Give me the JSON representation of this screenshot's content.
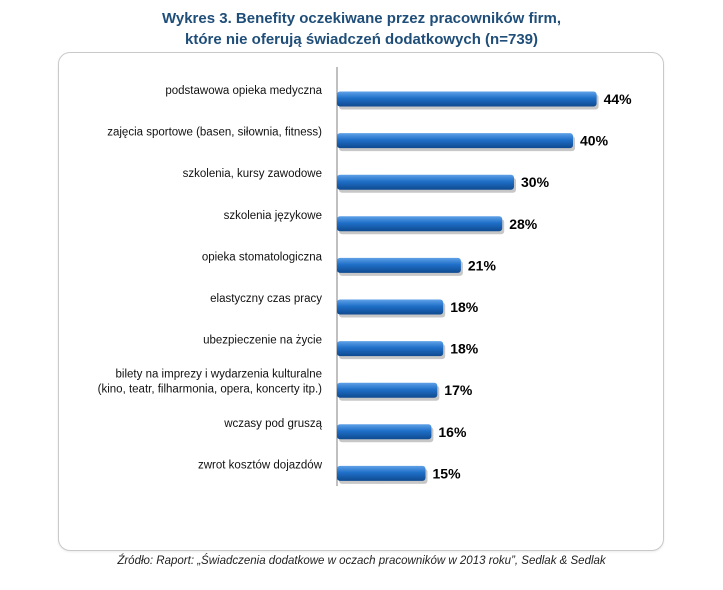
{
  "title_line1": "Wykres 3. Benefity oczekiwane przez pracowników firm,",
  "title_line2": "które nie oferują świadczeń dodatkowych (n=739)",
  "source": "Źródło: Raport: „Świadczenia  dodatkowe w oczach pracowników w 2013 roku”, Sedlak & Sedlak",
  "colors": {
    "bar": "#1f6fc8",
    "bar_dark": "#0f4a8f",
    "bar_light": "#5fa1e8",
    "title": "#1f4e79"
  },
  "chart_data": {
    "type": "bar",
    "orientation": "horizontal",
    "title": "",
    "xlabel": "",
    "ylabel": "",
    "grid": false,
    "xlim": [
      0,
      50
    ],
    "categories": [
      [
        "podstawowa  opieka medyczna"
      ],
      [
        "zajęcia sportowe (basen, siłownia,  fitness)"
      ],
      [
        "szkolenia, kursy zawodowe"
      ],
      [
        "szkolenia językowe"
      ],
      [
        "opieka stomatologiczna"
      ],
      [
        "elastyczny czas pracy"
      ],
      [
        "ubezpieczenie na życie"
      ],
      [
        "bilety na imprezy i wydarzenia kulturalne",
        "(kino, teatr, filharmonia,  opera, koncerty itp.)"
      ],
      [
        "wczasy pod gruszą"
      ],
      [
        "zwrot kosztów  dojazdów"
      ]
    ],
    "values": [
      44,
      40,
      30,
      28,
      21,
      18,
      18,
      17,
      16,
      15
    ],
    "value_labels": [
      "44%",
      "40%",
      "30%",
      "28%",
      "21%",
      "18%",
      "18%",
      "17%",
      "16%",
      "15%"
    ]
  }
}
